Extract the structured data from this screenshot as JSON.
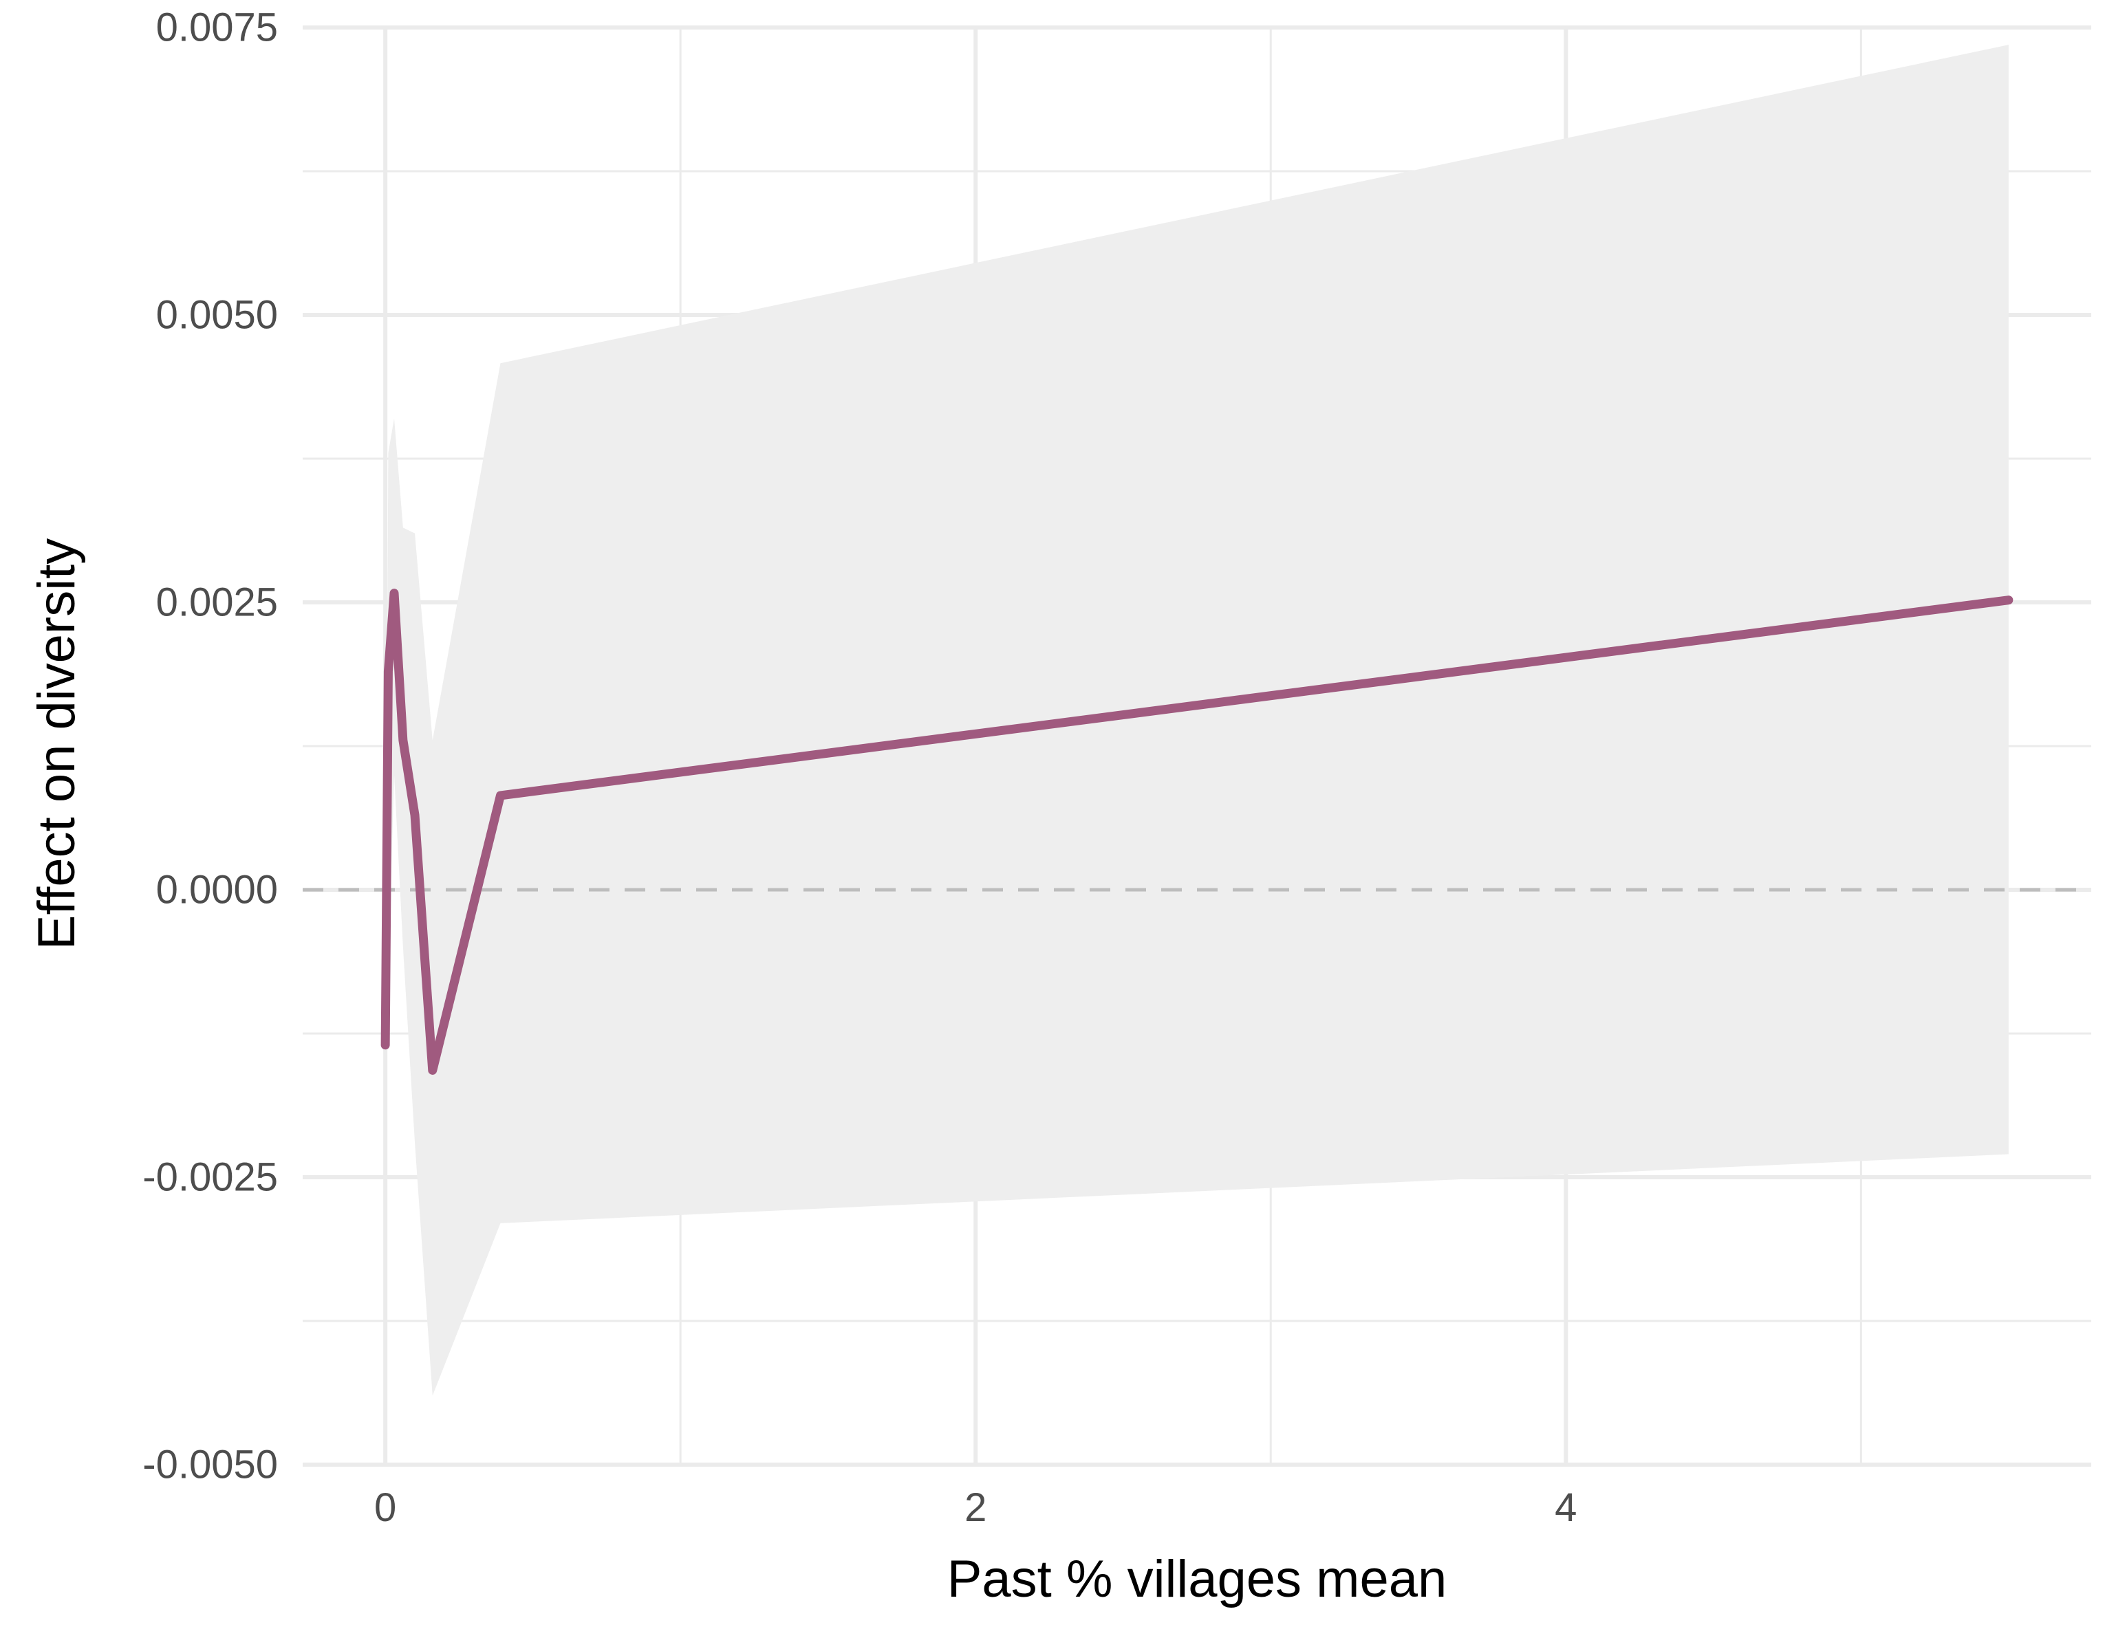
{
  "chart_data": {
    "type": "line",
    "title": "",
    "xlabel": "Past % villages mean",
    "ylabel": "Effect on diversity",
    "xlim": [
      -0.28,
      5.78
    ],
    "ylim": [
      -0.005,
      0.0075
    ],
    "x_ticks": [
      0,
      2,
      4
    ],
    "x_tick_labels": [
      "0",
      "2",
      "4"
    ],
    "y_ticks": [
      -0.005,
      -0.0025,
      0,
      0.0025,
      0.005,
      0.0075
    ],
    "y_tick_labels": [
      "-0.0050",
      "-0.0025",
      "0.0000",
      "0.0025",
      "0.0050",
      "0.0075"
    ],
    "x_minor_gridlines": [
      1,
      3,
      5
    ],
    "y_minor_gridlines": [
      -0.00375,
      -0.00125,
      0.00125,
      0.00375,
      0.00625
    ],
    "grid": true,
    "reference_line": {
      "y": 0,
      "style": "dashed",
      "color": "#bdbdbd"
    },
    "series": [
      {
        "color": "#a05a7f",
        "x": [
          0.0,
          0.01,
          0.03,
          0.06,
          0.1,
          0.16,
          0.39,
          5.5
        ],
        "y": [
          -0.00135,
          0.0019,
          0.00258,
          0.0013,
          0.00065,
          -0.00157,
          0.00082,
          0.00252
        ],
        "ci_lower": [
          -0.00135,
          -0.0007,
          0.001,
          -0.0005,
          -0.0022,
          -0.0044,
          -0.0029,
          -0.0023
        ],
        "ci_upper": [
          -0.00135,
          0.0038,
          0.0041,
          0.00315,
          0.0031,
          0.0013,
          0.00458,
          0.00735
        ],
        "ci_color": "#eeeeee"
      }
    ]
  }
}
